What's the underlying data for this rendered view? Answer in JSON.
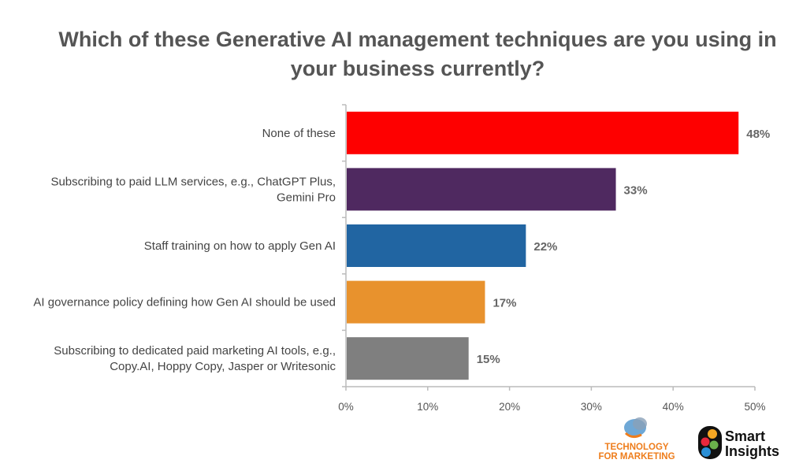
{
  "chart_data": {
    "type": "bar",
    "orientation": "horizontal",
    "title": "Which of these Generative AI management techniques are you using in your business currently?",
    "categories": [
      [
        "None of these"
      ],
      [
        "Subscribing to paid LLM services, e.g., ChatGPT Plus,",
        "Gemini Pro"
      ],
      [
        "Staff training on how to apply Gen AI"
      ],
      [
        "AI governance policy defining how Gen AI should be used"
      ],
      [
        "Subscribing to dedicated paid marketing AI tools, e.g.,",
        "Copy.AI, Hoppy Copy, Jasper or Writesonic"
      ]
    ],
    "values": [
      48,
      33,
      22,
      17,
      15
    ],
    "data_labels": [
      "48%",
      "33%",
      "22%",
      "17%",
      "15%"
    ],
    "colors": [
      "#fe0000",
      "#4f2960",
      "#2165a2",
      "#e8922d",
      "#7f7f7f"
    ],
    "xlim": [
      0,
      50
    ],
    "xticks": [
      0,
      10,
      20,
      30,
      40,
      50
    ],
    "xtick_labels": [
      "0%",
      "10%",
      "20%",
      "30%",
      "40%",
      "50%"
    ],
    "xlabel": "",
    "ylabel": "",
    "grid": false,
    "legend": "none"
  },
  "logos": {
    "technology_for_marketing": [
      "TECHNOLOGY",
      "FOR MARKETING"
    ],
    "smart_insights": [
      "Smart",
      "Insights"
    ]
  }
}
